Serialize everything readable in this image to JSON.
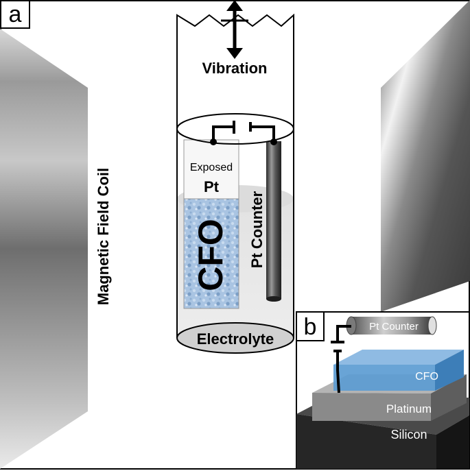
{
  "panel_a": {
    "label": "a",
    "vibration_label": "Vibration",
    "coil_label": "Magnetic Field Coil",
    "exposed_label": "Exposed",
    "pt_label": "Pt",
    "cfo_label": "CFO",
    "pt_counter_label": "Pt Counter",
    "electrolyte_label": "Electrolyte"
  },
  "panel_b": {
    "label": "b",
    "pt_counter_label": "Pt Counter",
    "cfo_label": "CFO",
    "platinum_label": "Platinum",
    "silicon_label": "Silicon"
  },
  "colors": {
    "cfo_blue": "#8fb4d8",
    "cfo_layer_blue": "#5b9bd0",
    "silicon_dark": "#2f2f2f",
    "platinum_grey": "#8a8a8a"
  }
}
